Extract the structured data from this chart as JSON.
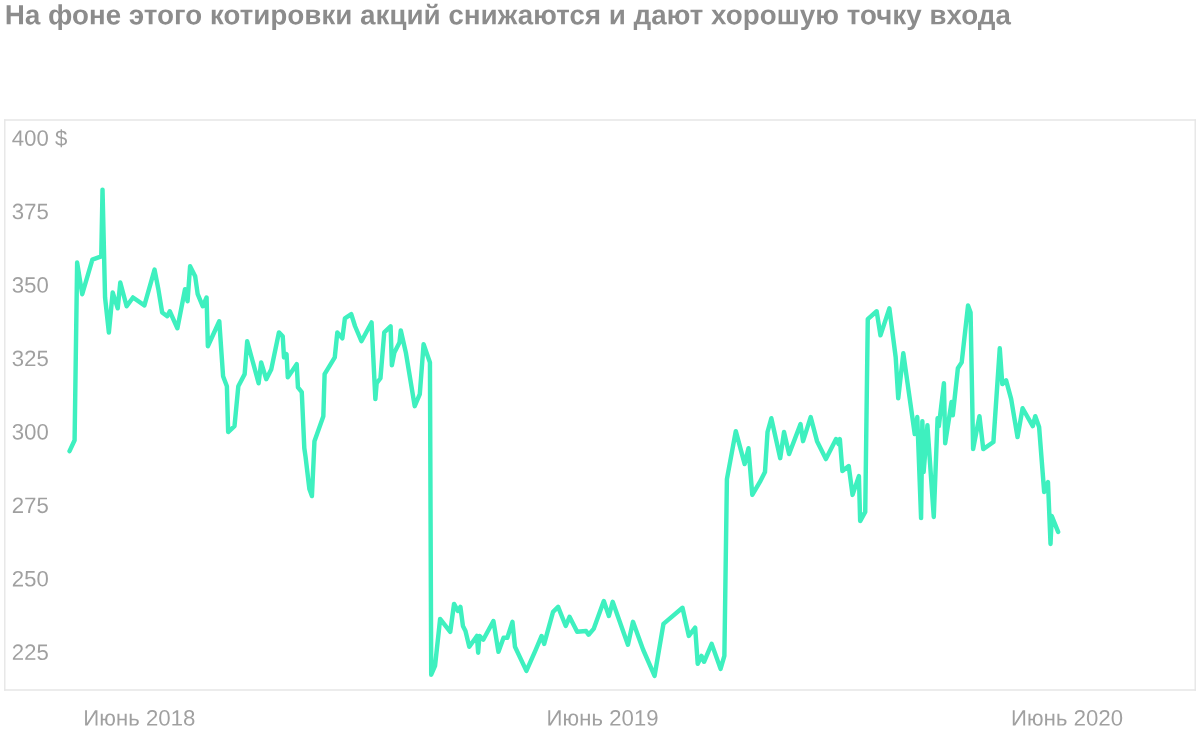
{
  "chart_data": {
    "type": "line",
    "title": "На фоне этого котировки акций снижаются и дают хорошую точку входа",
    "xlim": [
      "2018-02-15",
      "2020-09-10"
    ],
    "ylim": [
      212,
      406
    ],
    "xticks": [
      {
        "value": "2018-06-01",
        "label": "Июнь 2018"
      },
      {
        "value": "2019-06-01",
        "label": "Июнь 2019"
      },
      {
        "value": "2020-06-01",
        "label": "Июнь 2020"
      }
    ],
    "yticks": [
      225,
      250,
      275,
      300,
      325,
      350,
      375,
      {
        "value": 400,
        "label": "400 $"
      }
    ],
    "series": [
      {
        "color": "#3ef0bf",
        "x": [
          "2018-04-07",
          "2018-04-11",
          "2018-04-13",
          "2018-04-17",
          "2018-04-25",
          "2018-05-02",
          "2018-05-03",
          "2018-05-05",
          "2018-05-08",
          "2018-05-11",
          "2018-05-15",
          "2018-05-17",
          "2018-05-22",
          "2018-05-27",
          "2018-06-05",
          "2018-06-13",
          "2018-06-16",
          "2018-06-19",
          "2018-06-23",
          "2018-06-25",
          "2018-07-01",
          "2018-07-07",
          "2018-07-09",
          "2018-07-11",
          "2018-07-15",
          "2018-07-17",
          "2018-07-21",
          "2018-07-24",
          "2018-07-25",
          "2018-08-03",
          "2018-08-06",
          "2018-08-09",
          "2018-08-10",
          "2018-08-15",
          "2018-08-18",
          "2018-08-23",
          "2018-08-25",
          "2018-09-03",
          "2018-09-05",
          "2018-09-09",
          "2018-09-13",
          "2018-09-19",
          "2018-09-22",
          "2018-09-23",
          "2018-09-25",
          "2018-09-26",
          "2018-10-03",
          "2018-10-04",
          "2018-10-07",
          "2018-10-09",
          "2018-10-10",
          "2018-10-13",
          "2018-10-15",
          "2018-10-17",
          "2018-10-24",
          "2018-10-25",
          "2018-11-02",
          "2018-11-04",
          "2018-11-08",
          "2018-11-10",
          "2018-11-15",
          "2018-11-18",
          "2018-11-23",
          "2018-12-01",
          "2018-12-04",
          "2018-12-05",
          "2018-12-08",
          "2018-12-11",
          "2018-12-16",
          "2018-12-17",
          "2018-12-19",
          "2018-12-23",
          "2018-12-24",
          "2018-12-28",
          "2019-01-04",
          "2019-01-08",
          "2019-01-11",
          "2019-01-16",
          "2019-01-17",
          "2019-01-20",
          "2019-01-23",
          "2019-01-24",
          "2019-02-01",
          "2019-02-04",
          "2019-02-07",
          "2019-02-09",
          "2019-02-11",
          "2019-02-13",
          "2019-02-16",
          "2019-02-22",
          "2019-02-23",
          "2019-02-24",
          "2019-02-27",
          "2019-03-07",
          "2019-03-11",
          "2019-03-15",
          "2019-03-18",
          "2019-03-22",
          "2019-03-24",
          "2019-04-02",
          "2019-04-09",
          "2019-04-14",
          "2019-04-16",
          "2019-04-23",
          "2019-04-27",
          "2019-05-03",
          "2019-05-06",
          "2019-05-12",
          "2019-05-19",
          "2019-05-21",
          "2019-05-25",
          "2019-06-02",
          "2019-06-06",
          "2019-06-09",
          "2019-06-21",
          "2019-06-25",
          "2019-07-03",
          "2019-07-12",
          "2019-07-19",
          "2019-08-03",
          "2019-08-08",
          "2019-08-13",
          "2019-08-15",
          "2019-08-18",
          "2019-08-20",
          "2019-08-26",
          "2019-09-02",
          "2019-09-05",
          "2019-09-07",
          "2019-09-14",
          "2019-09-21",
          "2019-09-24",
          "2019-09-27",
          "2019-10-03",
          "2019-10-07",
          "2019-10-09",
          "2019-10-12",
          "2019-10-19",
          "2019-10-22",
          "2019-10-26",
          "2019-11-04",
          "2019-11-06",
          "2019-11-12",
          "2019-11-17",
          "2019-11-24",
          "2019-12-02",
          "2019-12-04",
          "2019-12-05",
          "2019-12-07",
          "2019-12-12",
          "2019-12-15",
          "2019-12-20",
          "2019-12-21",
          "2019-12-25",
          "2019-12-27",
          "2020-01-03",
          "2020-01-06",
          "2020-01-13",
          "2020-01-18",
          "2020-01-20",
          "2020-01-24",
          "2020-02-02",
          "2020-02-04",
          "2020-02-07",
          "2020-02-08",
          "2020-02-09",
          "2020-02-12",
          "2020-02-17",
          "2020-02-20",
          "2020-02-21",
          "2020-02-25",
          "2020-02-26",
          "2020-03-02",
          "2020-03-03",
          "2020-03-07",
          "2020-03-10",
          "2020-03-15",
          "2020-03-17",
          "2020-03-19",
          "2020-03-24",
          "2020-03-27",
          "2020-04-04",
          "2020-04-09",
          "2020-04-11",
          "2020-04-14",
          "2020-04-18",
          "2020-04-23",
          "2020-04-27",
          "2020-05-05",
          "2020-05-07",
          "2020-05-10",
          "2020-05-14",
          "2020-05-17",
          "2020-05-19",
          "2020-05-20",
          "2020-05-25"
        ],
        "values": [
          293.3,
          297.0,
          357.5,
          346.7,
          358.5,
          359.6,
          382.3,
          345.6,
          333.7,
          347.3,
          341.9,
          350.7,
          342.6,
          345.6,
          342.9,
          355.1,
          348.4,
          340.5,
          339.2,
          340.9,
          335.1,
          348.4,
          344.3,
          356.2,
          352.8,
          346.7,
          342.6,
          345.6,
          329.0,
          337.5,
          318.8,
          315.4,
          299.8,
          301.8,
          315.4,
          319.5,
          330.7,
          316.4,
          323.5,
          317.8,
          321.2,
          333.7,
          332.4,
          325.2,
          326.3,
          318.4,
          322.9,
          315.0,
          313.4,
          294.3,
          291.3,
          280.4,
          278.0,
          296.7,
          305.2,
          319.5,
          325.2,
          333.7,
          331.7,
          338.5,
          339.9,
          335.8,
          330.7,
          337.1,
          311.0,
          316.4,
          318.1,
          333.7,
          335.8,
          322.5,
          326.9,
          330.3,
          334.4,
          326.9,
          308.6,
          312.7,
          329.7,
          323.5,
          217.2,
          220.2,
          232.1,
          236.2,
          231.8,
          241.3,
          238.9,
          240.3,
          233.8,
          232.1,
          226.7,
          230.4,
          224.7,
          230.4,
          229.1,
          235.5,
          225.0,
          229.8,
          229.8,
          235.2,
          226.7,
          218.5,
          225.3,
          230.4,
          227.7,
          238.6,
          240.3,
          233.8,
          236.9,
          231.8,
          232.1,
          230.8,
          232.8,
          242.3,
          237.2,
          242.0,
          227.4,
          235.2,
          225.7,
          216.8,
          234.5,
          240.0,
          230.4,
          233.2,
          220.9,
          223.6,
          221.6,
          227.7,
          219.2,
          223.6,
          283.8,
          300.1,
          288.9,
          294.3,
          278.4,
          282.8,
          286.2,
          299.8,
          304.5,
          290.9,
          299.8,
          292.3,
          302.5,
          296.7,
          304.9,
          296.7,
          290.6,
          297.4,
          295.7,
          297.4,
          286.5,
          288.2,
          278.4,
          284.8,
          269.5,
          272.6,
          338.2,
          340.9,
          332.7,
          341.9,
          325.2,
          311.3,
          326.6,
          299.1,
          304.9,
          270.5,
          303.5,
          286.2,
          302.1,
          270.9,
          304.5,
          301.8,
          316.4,
          296.0,
          310.0,
          305.5,
          321.5,
          323.5,
          342.9,
          340.5,
          294.0,
          305.2,
          294.0,
          296.4,
          328.3,
          316.1,
          317.4,
          311.0,
          298.1,
          307.9,
          301.8,
          305.2,
          301.5,
          279.4,
          282.8,
          261.7,
          271.2,
          265.8
        ]
      }
    ]
  }
}
